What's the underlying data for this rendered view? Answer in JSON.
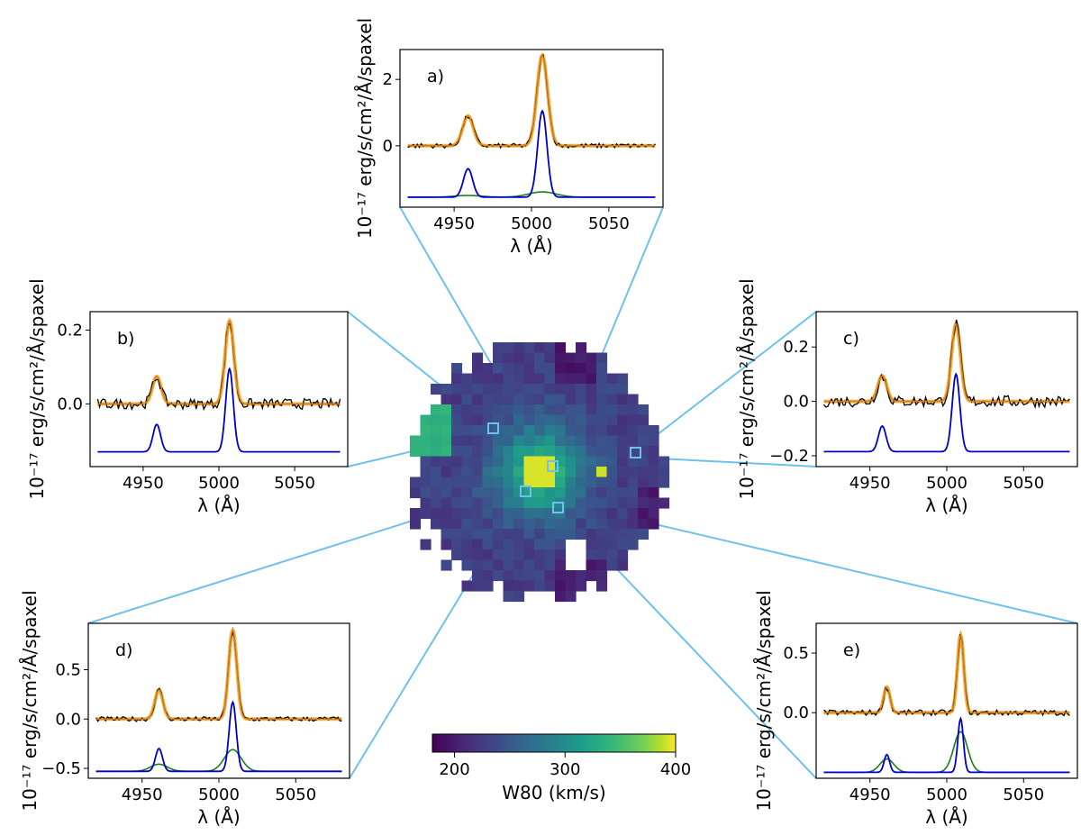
{
  "chart_data": {
    "type": "composite-spectra-map",
    "map": {
      "colorbar_label": "W80 (km/s)",
      "colorbar_range": [
        180,
        400
      ],
      "colorbar_ticks": [
        "200",
        "300",
        "400"
      ],
      "colormap": "viridis"
    },
    "panels": [
      {
        "id": "a",
        "label": "a)",
        "xlabel": "λ (Å)",
        "ylabel": "10⁻¹⁷ erg/s/cm²/Å/spaxel",
        "xlim": [
          4915,
          5085
        ],
        "ylim": [
          -1.85,
          2.9
        ],
        "xticks": [
          "4950",
          "5000",
          "5050"
        ],
        "xtick_values": [
          4950,
          5000,
          5050
        ],
        "yticks": [
          "0",
          "2"
        ],
        "ytick_values": [
          0,
          2
        ],
        "baseline": 0,
        "offset": -1.55,
        "peak_main": 2.72,
        "peak_blue": 2.6,
        "peak_green": 0.16,
        "sigma_blue": 3.0,
        "sigma_green": 9.0,
        "noise": 0.035,
        "has_broad": true,
        "center": 5007
      },
      {
        "id": "b",
        "label": "b)",
        "xlabel": "λ (Å)",
        "ylabel": "10⁻¹⁷ erg/s/cm²/Å/spaxel",
        "xlim": [
          4915,
          5085
        ],
        "ylim": [
          -0.17,
          0.25
        ],
        "xticks": [
          "4950",
          "5000",
          "5050"
        ],
        "xtick_values": [
          4950,
          5000,
          5050
        ],
        "yticks": [
          "0.0",
          "0.2"
        ],
        "ytick_values": [
          0.0,
          0.2
        ],
        "baseline": 0,
        "offset": -0.13,
        "peak_main": 0.225,
        "peak_blue": 0.225,
        "peak_green": 0,
        "sigma_blue": 2.5,
        "sigma_green": 6.0,
        "noise": 0.012,
        "has_broad": false,
        "center": 5007
      },
      {
        "id": "c",
        "label": "c)",
        "xlabel": "λ (Å)",
        "ylabel": "10⁻¹⁷ erg/s/cm²/Å/spaxel",
        "xlim": [
          4915,
          5085
        ],
        "ylim": [
          -0.24,
          0.33
        ],
        "xticks": [
          "4950",
          "5000",
          "5050"
        ],
        "xtick_values": [
          4950,
          5000,
          5050
        ],
        "yticks": [
          "−0.2",
          "0.0",
          "0.2"
        ],
        "ytick_values": [
          -0.2,
          0.0,
          0.2
        ],
        "baseline": 0,
        "offset": -0.185,
        "peak_main": 0.285,
        "peak_blue": 0.285,
        "peak_green": 0,
        "sigma_blue": 2.5,
        "sigma_green": 6.0,
        "noise": 0.018,
        "has_broad": false,
        "center": 5006
      },
      {
        "id": "d",
        "label": "d)",
        "xlabel": "λ (Å)",
        "ylabel": "10⁻¹⁷ erg/s/cm²/Å/spaxel",
        "xlim": [
          4915,
          5085
        ],
        "ylim": [
          -0.6,
          0.97
        ],
        "xticks": [
          "4950",
          "5000",
          "5050"
        ],
        "xtick_values": [
          4950,
          5000,
          5050
        ],
        "yticks": [
          "−0.5",
          "0.0",
          "0.5"
        ],
        "ytick_values": [
          -0.5,
          0.0,
          0.5
        ],
        "baseline": 0,
        "offset": -0.53,
        "peak_main": 0.9,
        "peak_blue": 0.7,
        "peak_green": 0.22,
        "sigma_blue": 2.3,
        "sigma_green": 5.5,
        "noise": 0.02,
        "has_broad": true,
        "center": 5009
      },
      {
        "id": "e",
        "label": "e)",
        "xlabel": "λ (Å)",
        "ylabel": "10⁻¹⁷ erg/s/cm²/Å/spaxel",
        "xlim": [
          4915,
          5085
        ],
        "ylim": [
          -0.55,
          0.75
        ],
        "xticks": [
          "4950",
          "5000",
          "5050"
        ],
        "xtick_values": [
          4950,
          5000,
          5050
        ],
        "yticks": [
          "0.0",
          "0.5"
        ],
        "ytick_values": [
          0.0,
          0.5
        ],
        "baseline": 0,
        "offset": -0.5,
        "peak_main": 0.65,
        "peak_blue": 0.45,
        "peak_green": 0.34,
        "sigma_blue": 1.8,
        "sigma_green": 4.5,
        "noise": 0.02,
        "has_broad": true,
        "center": 5009
      }
    ],
    "series_colors": {
      "data": "#000000",
      "fit": "#f5a623",
      "fit_dark": "#d08020",
      "narrow": "#0000cc",
      "broad": "#1e7a1e",
      "connector": "#6ec1ee"
    }
  }
}
